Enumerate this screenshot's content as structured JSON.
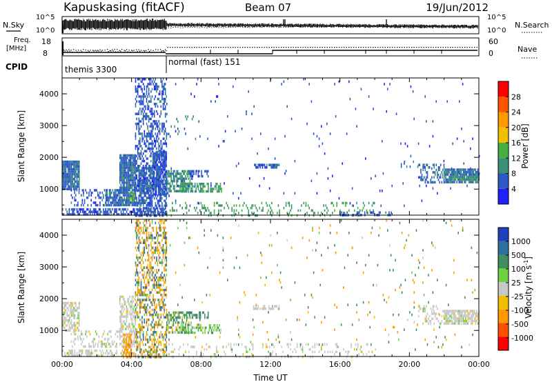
{
  "header": {
    "site": "Kapuskasing (fitACF)",
    "beam": "Beam 07",
    "date": "19/Jun/2012"
  },
  "noise_panel": {
    "left_label": "N.Sky",
    "right_label": "N.Search",
    "ticks": [
      "10^5",
      "10^0"
    ]
  },
  "freq_panel": {
    "left_label_1": "Freq.",
    "left_label_2": "[MHz]",
    "left_ticks": [
      "18",
      "8"
    ],
    "right_ticks": [
      "60",
      "0"
    ],
    "right_label": "Nave"
  },
  "cpid_panel": {
    "label": "CPID",
    "modes": [
      {
        "name": "themis 3300",
        "start_hour": 0
      },
      {
        "name": "normal (fast) 151",
        "start_hour": 6
      }
    ]
  },
  "colors": {
    "power": [
      "#2020ff",
      "#2e58c8",
      "#3a8f7a",
      "#44b044",
      "#f0c000",
      "#ff9900",
      "#ff5500",
      "#ff0000"
    ],
    "velocity": [
      "#1f3fbf",
      "#2f6f9f",
      "#3f8f5f",
      "#6fd040",
      "#c8c8c8",
      "#f0c000",
      "#ff9900",
      "#ff5000",
      "#ff0000"
    ]
  },
  "chart_data": [
    {
      "type": "heatmap",
      "name": "power",
      "ylabel": "Slant Range [km]",
      "yticks": [
        1000,
        2000,
        3000,
        4000
      ],
      "ylim": [
        180,
        4500
      ],
      "xlim": [
        0,
        24
      ],
      "colorbar_label": "Power [dB]",
      "colorbar_ticks": [
        4,
        8,
        12,
        16,
        20,
        24,
        28
      ],
      "colorbar_range": [
        0,
        32
      ],
      "regions": [
        {
          "t": [
            0.0,
            1.0
          ],
          "r": [
            1000,
            1900
          ],
          "v": 7,
          "d": 0.95
        },
        {
          "t": [
            0.0,
            6.0
          ],
          "r": [
            180,
            400
          ],
          "v": 6,
          "d": 0.6
        },
        {
          "t": [
            0.5,
            2.5
          ],
          "r": [
            500,
            1000
          ],
          "v": 6,
          "d": 0.35
        },
        {
          "t": [
            2.5,
            3.3
          ],
          "r": [
            500,
            1000
          ],
          "v": 7,
          "d": 0.8
        },
        {
          "t": [
            3.3,
            4.2
          ],
          "r": [
            500,
            2100
          ],
          "v": 7,
          "d": 0.9
        },
        {
          "t": [
            3.8,
            4.2
          ],
          "r": [
            600,
            900
          ],
          "v": 14,
          "d": 0.7
        },
        {
          "t": [
            4.2,
            5.2
          ],
          "r": [
            500,
            1700
          ],
          "v": 7,
          "d": 0.7
        },
        {
          "t": [
            4.2,
            6.0
          ],
          "r": [
            180,
            4500
          ],
          "v": 6,
          "d": 0.45
        },
        {
          "t": [
            5.2,
            6.0
          ],
          "r": [
            800,
            2200
          ],
          "v": 6,
          "d": 0.8
        },
        {
          "t": [
            6.0,
            7.5
          ],
          "r": [
            900,
            1600
          ],
          "v": 10,
          "d": 0.6
        },
        {
          "t": [
            6.8,
            9.2
          ],
          "r": [
            900,
            1200
          ],
          "v": 11,
          "d": 0.5
        },
        {
          "t": [
            7.3,
            8.5
          ],
          "r": [
            1400,
            1600
          ],
          "v": 6,
          "d": 0.5
        },
        {
          "t": [
            6.0,
            8.0
          ],
          "r": [
            2600,
            3400
          ],
          "v": 8,
          "d": 0.04
        },
        {
          "t": [
            6.0,
            18.0
          ],
          "r": [
            180,
            600
          ],
          "v": 12,
          "d": 0.18
        },
        {
          "t": [
            11.0,
            12.5
          ],
          "r": [
            1650,
            1800
          ],
          "v": 6,
          "d": 0.6
        },
        {
          "t": [
            16.0,
            19.0
          ],
          "r": [
            180,
            300
          ],
          "v": 6,
          "d": 0.4
        },
        {
          "t": [
            19.5,
            20.5
          ],
          "r": [
            1700,
            1900
          ],
          "v": 6,
          "d": 0.25
        },
        {
          "t": [
            20.5,
            22.0
          ],
          "r": [
            1200,
            1800
          ],
          "v": 7,
          "d": 0.35
        },
        {
          "t": [
            22.0,
            24.0
          ],
          "r": [
            1200,
            1650
          ],
          "v": 8,
          "d": 0.85
        },
        {
          "t": [
            22.3,
            24.0
          ],
          "r": [
            1280,
            1420
          ],
          "v": 12,
          "d": 0.6
        },
        {
          "t": [
            6.0,
            24.0
          ],
          "r": [
            400,
            4500
          ],
          "v": 5,
          "d": 0.01
        }
      ]
    },
    {
      "type": "heatmap",
      "name": "velocity",
      "ylabel": "Slant Range [km]",
      "yticks": [
        1000,
        2000,
        3000,
        4000
      ],
      "ylim": [
        180,
        4500
      ],
      "xlim": [
        0,
        24
      ],
      "xlabel": "Time UT",
      "xticks": [
        "00:00",
        "04:00",
        "08:00",
        "12:00",
        "16:00",
        "20:00",
        "00:00"
      ],
      "colorbar_label": "Velocity [m s^-1]",
      "colorbar_ticks": [
        1000,
        500,
        100,
        25,
        -25,
        -100,
        -500,
        -1000
      ],
      "regions": [
        {
          "t": [
            0.0,
            1.0
          ],
          "r": [
            1000,
            1900
          ],
          "v": 0,
          "d": 0.6
        },
        {
          "t": [
            0.0,
            6.0
          ],
          "r": [
            180,
            400
          ],
          "v": 0,
          "d": 0.5
        },
        {
          "t": [
            0.5,
            3.3
          ],
          "r": [
            500,
            1000
          ],
          "v": 0,
          "d": 0.3
        },
        {
          "t": [
            3.3,
            4.2
          ],
          "r": [
            500,
            2100
          ],
          "v": 0,
          "d": 0.55
        },
        {
          "t": [
            3.5,
            4.0
          ],
          "r": [
            180,
            900
          ],
          "v": -300,
          "d": 0.6
        },
        {
          "t": [
            4.2,
            6.0
          ],
          "r": [
            180,
            4500
          ],
          "v": -150,
          "d": 0.35
        },
        {
          "t": [
            4.2,
            6.0
          ],
          "r": [
            180,
            4500
          ],
          "v": 600,
          "d": 0.15
        },
        {
          "t": [
            6.0,
            7.5
          ],
          "r": [
            900,
            1600
          ],
          "v": 150,
          "d": 0.5
        },
        {
          "t": [
            6.8,
            9.2
          ],
          "r": [
            900,
            1200
          ],
          "v": 90,
          "d": 0.45
        },
        {
          "t": [
            7.3,
            8.5
          ],
          "r": [
            1400,
            1600
          ],
          "v": 400,
          "d": 0.45
        },
        {
          "t": [
            6.0,
            18.0
          ],
          "r": [
            180,
            600
          ],
          "v": 0,
          "d": 0.15
        },
        {
          "t": [
            11.0,
            12.5
          ],
          "r": [
            1650,
            1800
          ],
          "v": 0,
          "d": 0.5
        },
        {
          "t": [
            20.5,
            22.0
          ],
          "r": [
            1200,
            1800
          ],
          "v": 0,
          "d": 0.3
        },
        {
          "t": [
            22.0,
            24.0
          ],
          "r": [
            1200,
            1650
          ],
          "v": 0,
          "d": 0.8
        },
        {
          "t": [
            6.0,
            24.0
          ],
          "r": [
            400,
            4500
          ],
          "v": 200,
          "d": 0.01
        },
        {
          "t": [
            6.0,
            24.0
          ],
          "r": [
            400,
            4500
          ],
          "v": -200,
          "d": 0.008
        }
      ]
    }
  ]
}
